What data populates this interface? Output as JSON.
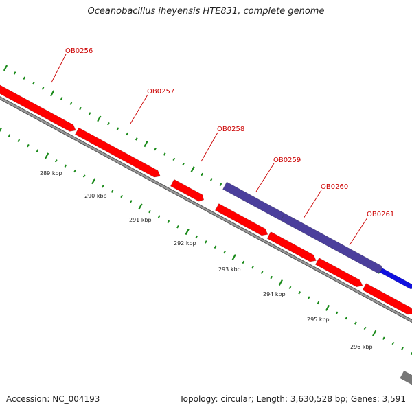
{
  "title": "Oceanobacillus iheyensis HTE831, complete genome",
  "footer": {
    "accession": "Accession: NC_004193",
    "summary": "Topology: circular; Length: 3,630,528 bp; Genes: 3,591"
  },
  "colors": {
    "background": "#ffffff",
    "backbone": "#999999",
    "backbone_edge": "#555555",
    "gene_red": "#ff0000",
    "gene_purple": "#4b3f9c",
    "gene_blue": "#1010e0",
    "gene_olive": "#c8bb6a",
    "gene_gray": "#777777",
    "tick_green": "#1a8a1a",
    "label_red": "#cc0000"
  },
  "genes": [
    {
      "label": "OB0256"
    },
    {
      "label": "OB0257"
    },
    {
      "label": "OB0258"
    },
    {
      "label": "OB0259"
    },
    {
      "label": "OB0260"
    },
    {
      "label": "OB0261"
    }
  ],
  "kbp_labels": [
    "289 kbp",
    "290 kbp",
    "291 kbp",
    "292 kbp",
    "293 kbp",
    "294 kbp",
    "295 kbp",
    "296 kbp"
  ]
}
